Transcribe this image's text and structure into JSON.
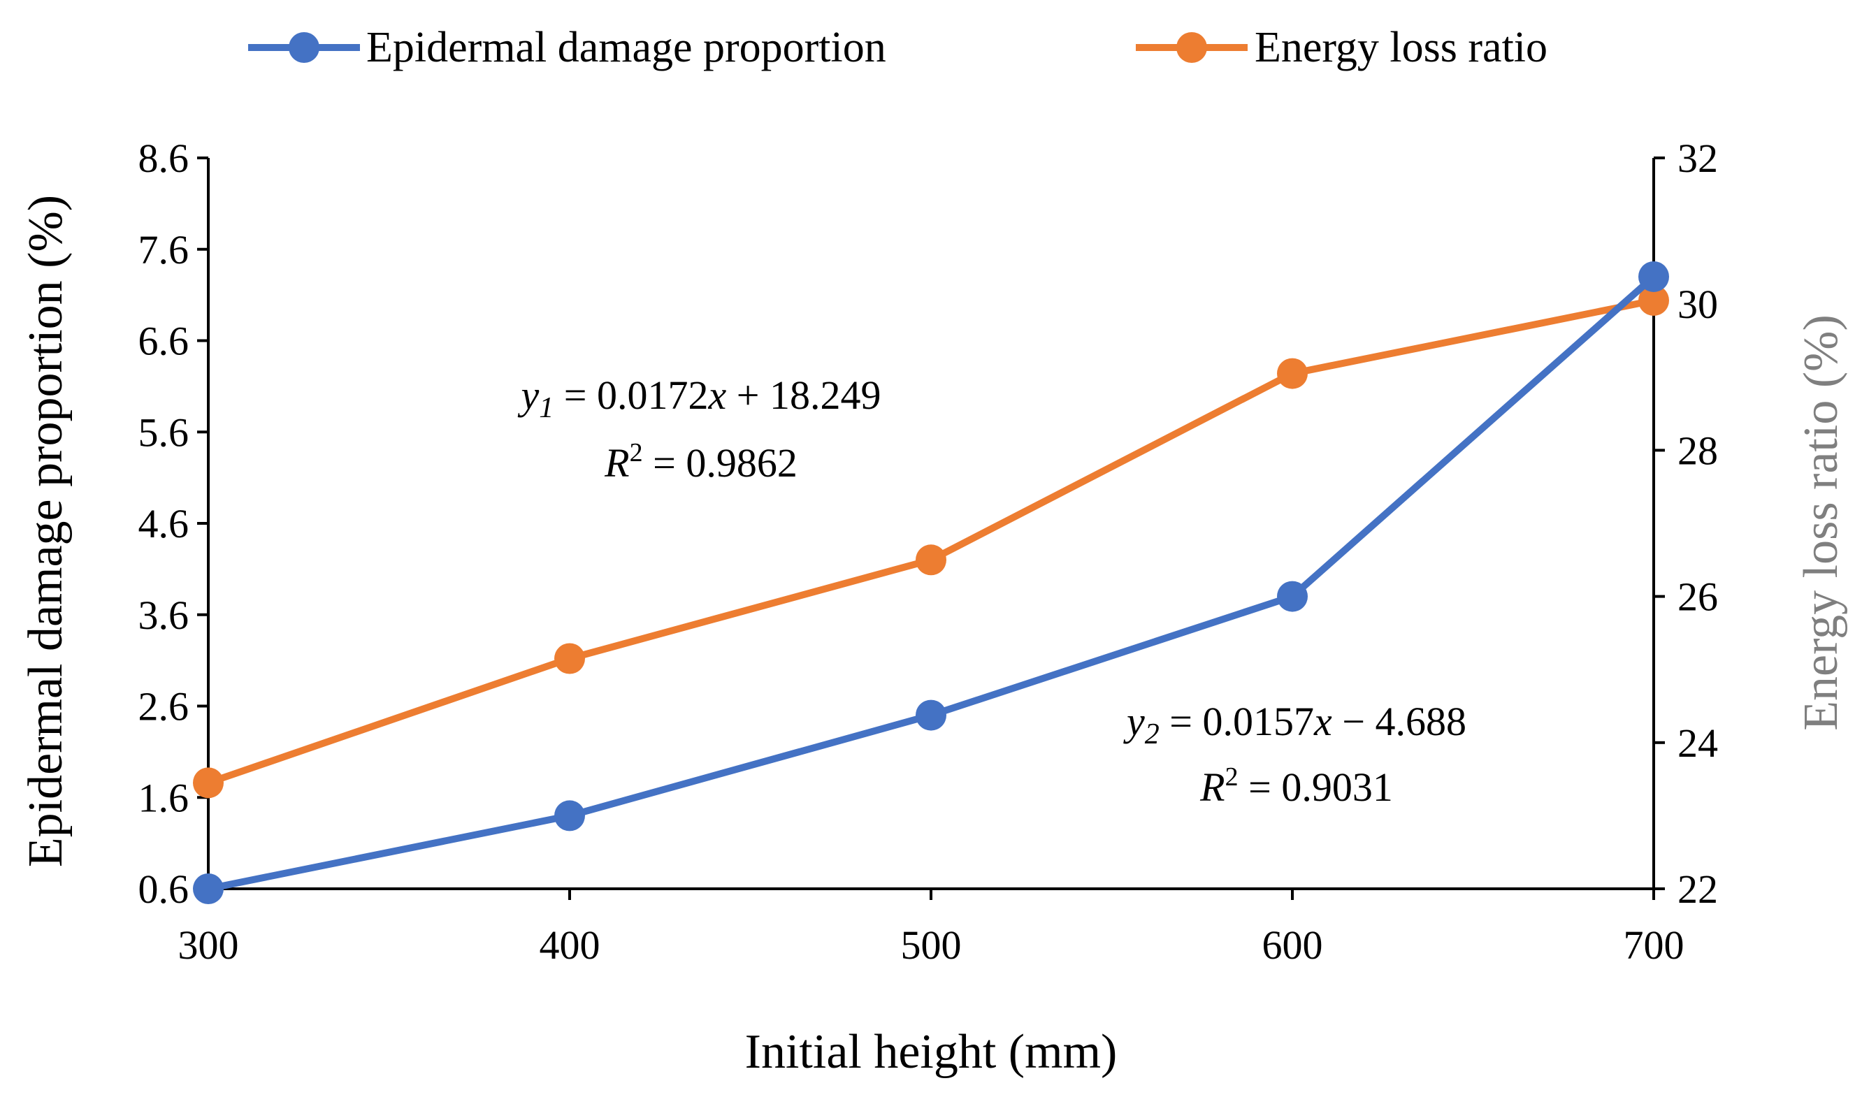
{
  "chart_data": {
    "type": "line",
    "x": [
      300,
      400,
      500,
      600,
      700
    ],
    "xlabel": "Initial height (mm)",
    "xlim": [
      300,
      700
    ],
    "xticks": [
      "300",
      "400",
      "500",
      "600",
      "700"
    ],
    "y_left": {
      "label": "Epidermal damage proportion (%)",
      "lim": [
        0.6,
        8.6
      ],
      "ticks": [
        "0.6",
        "1.6",
        "2.6",
        "3.6",
        "4.6",
        "5.6",
        "6.6",
        "7.6",
        "8.6"
      ]
    },
    "y_right": {
      "label": "Energy loss ratio (%)",
      "lim": [
        22,
        32
      ],
      "ticks": [
        "22",
        "24",
        "26",
        "28",
        "30",
        "32"
      ]
    },
    "series": [
      {
        "name": "Epidermal damage proportion",
        "axis": "left",
        "color": "#4472C4",
        "values": [
          0.6,
          1.4,
          2.5,
          3.8,
          7.3
        ]
      },
      {
        "name": "Energy loss ratio",
        "axis": "right",
        "color": "#ED7D31",
        "values": [
          23.45,
          25.15,
          26.5,
          29.05,
          30.05
        ]
      }
    ],
    "annotations": [
      {
        "series": "Energy loss ratio",
        "y_var": "y",
        "subscript": "1",
        "equation_rest": " = 0.0172",
        "x_var": "x",
        "equation_tail": " + 18.249",
        "r_label": "R",
        "r_sup": "2",
        "r_value": " = 0.9862"
      },
      {
        "series": "Epidermal damage proportion",
        "y_var": "y",
        "subscript": "2",
        "equation_rest": " = 0.0157",
        "x_var": "x",
        "equation_tail": " − 4.688",
        "r_label": "R",
        "r_sup": "2",
        "r_value": " = 0.9031"
      }
    ],
    "legend_position": "top-center",
    "grid": false,
    "right_axis_title_color": "#7F7F7F"
  }
}
